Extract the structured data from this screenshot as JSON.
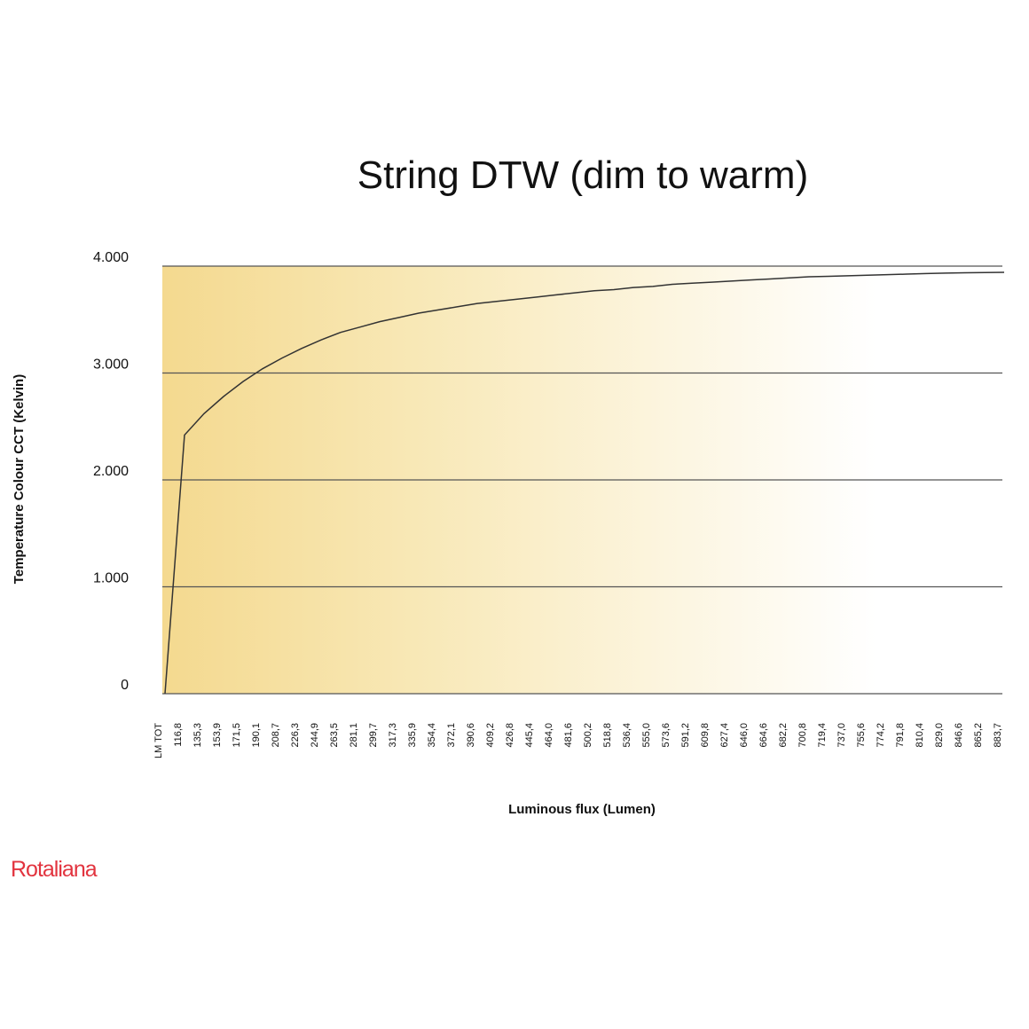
{
  "chart_data": {
    "type": "line",
    "title": "String DTW (dim to warm)",
    "y_label": "Temperature Colour CCT (Kelvin)",
    "x_label": "Luminous flux (Lumen)",
    "brand": "Rotaliana",
    "categories": [
      "LM TOT",
      "116,8",
      "135,3",
      "153,9",
      "171,5",
      "190,1",
      "208,7",
      "226,3",
      "244,9",
      "263,5",
      "281,1",
      "299,7",
      "317,3",
      "335,9",
      "354,4",
      "372,1",
      "390,6",
      "409,2",
      "426,8",
      "445,4",
      "464,0",
      "481,6",
      "500,2",
      "518,8",
      "536,4",
      "555,0",
      "573,6",
      "591,2",
      "609,8",
      "627,4",
      "646,0",
      "664,6",
      "682,2",
      "700,8",
      "719,4",
      "737,0",
      "755,6",
      "774,2",
      "791,8",
      "810,4",
      "829,0",
      "846,6",
      "865,2",
      "883,7"
    ],
    "values": [
      0,
      2420,
      2620,
      2780,
      2920,
      3040,
      3140,
      3230,
      3310,
      3380,
      3430,
      3480,
      3520,
      3560,
      3590,
      3620,
      3650,
      3670,
      3690,
      3710,
      3730,
      3750,
      3770,
      3780,
      3800,
      3810,
      3830,
      3840,
      3850,
      3860,
      3870,
      3880,
      3890,
      3900,
      3905,
      3910,
      3915,
      3920,
      3925,
      3930,
      3935,
      3938,
      3940,
      3942
    ],
    "color": "#333333",
    "ylim": [
      0,
      4000
    ],
    "yticks": [
      0,
      {
        "value": 1000,
        "label": "1.000"
      },
      {
        "value": 2000,
        "label": "2.000"
      },
      {
        "value": 3000,
        "label": "3.000"
      },
      {
        "value": 4000,
        "label": "4.000"
      }
    ],
    "grid": true
  }
}
